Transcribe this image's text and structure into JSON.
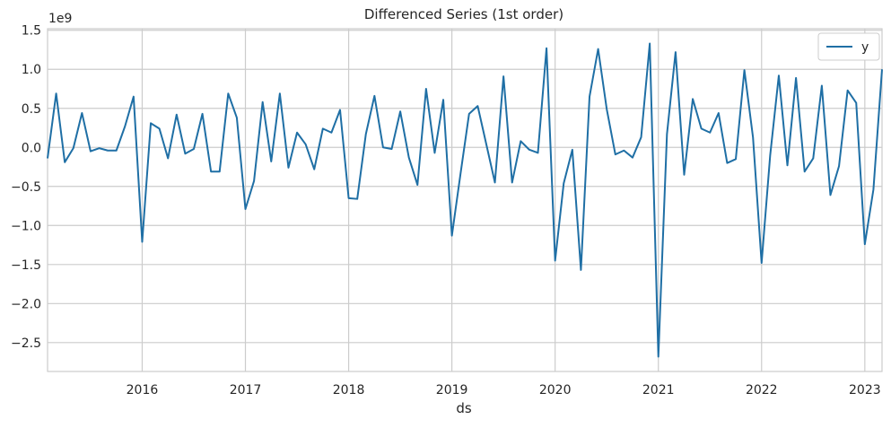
{
  "chart_data": {
    "type": "line",
    "title": "Differenced Series (1st order)",
    "xlabel": "ds",
    "ylabel": "",
    "y_scale_label": "1e9",
    "ylim": [
      -2.87,
      1.52
    ],
    "y_ticks": [
      {
        "value": 1.5,
        "label": "1.5"
      },
      {
        "value": 1.0,
        "label": "1.0"
      },
      {
        "value": 0.5,
        "label": "0.5"
      },
      {
        "value": 0.0,
        "label": "0.0"
      },
      {
        "value": -0.5,
        "label": "−0.5"
      },
      {
        "value": -1.0,
        "label": "−1.0"
      },
      {
        "value": -1.5,
        "label": "−1.5"
      },
      {
        "value": -2.0,
        "label": "−2.0"
      },
      {
        "value": -2.5,
        "label": "−2.5"
      }
    ],
    "x_start": "2015-02",
    "x_ticks": [
      {
        "index": 11,
        "label": "2016"
      },
      {
        "index": 23,
        "label": "2017"
      },
      {
        "index": 35,
        "label": "2018"
      },
      {
        "index": 47,
        "label": "2019"
      },
      {
        "index": 59,
        "label": "2020"
      },
      {
        "index": 71,
        "label": "2021"
      },
      {
        "index": 83,
        "label": "2022"
      },
      {
        "index": 95,
        "label": "2023"
      }
    ],
    "grid": true,
    "legend_position": "top-right",
    "series": [
      {
        "name": "y",
        "color": "#1f6fa5",
        "values": [
          -0.14,
          0.69,
          -0.19,
          -0.01,
          0.44,
          -0.05,
          -0.01,
          -0.04,
          -0.04,
          0.27,
          0.65,
          -1.21,
          0.31,
          0.24,
          -0.14,
          0.42,
          -0.08,
          -0.02,
          0.43,
          -0.31,
          -0.31,
          0.69,
          0.38,
          -0.79,
          -0.43,
          0.58,
          -0.18,
          0.69,
          -0.26,
          0.19,
          0.04,
          -0.28,
          0.24,
          0.19,
          0.48,
          -0.65,
          -0.66,
          0.17,
          0.66,
          0.0,
          -0.02,
          0.46,
          -0.13,
          -0.48,
          0.75,
          -0.07,
          0.61,
          -1.13,
          -0.34,
          0.43,
          0.53,
          0.04,
          -0.45,
          0.91,
          -0.45,
          0.08,
          -0.03,
          -0.07,
          1.27,
          -1.45,
          -0.46,
          -0.03,
          -1.57,
          0.65,
          1.26,
          0.49,
          -0.09,
          -0.04,
          -0.13,
          0.13,
          1.33,
          -2.68,
          0.17,
          1.22,
          -0.35,
          0.62,
          0.24,
          0.19,
          0.44,
          -0.2,
          -0.15,
          0.99,
          0.13,
          -1.48,
          -0.1,
          0.92,
          -0.23,
          0.89,
          -0.31,
          -0.14,
          0.79,
          -0.61,
          -0.24,
          0.73,
          0.57,
          -1.24,
          -0.54,
          1.0
        ]
      }
    ]
  }
}
